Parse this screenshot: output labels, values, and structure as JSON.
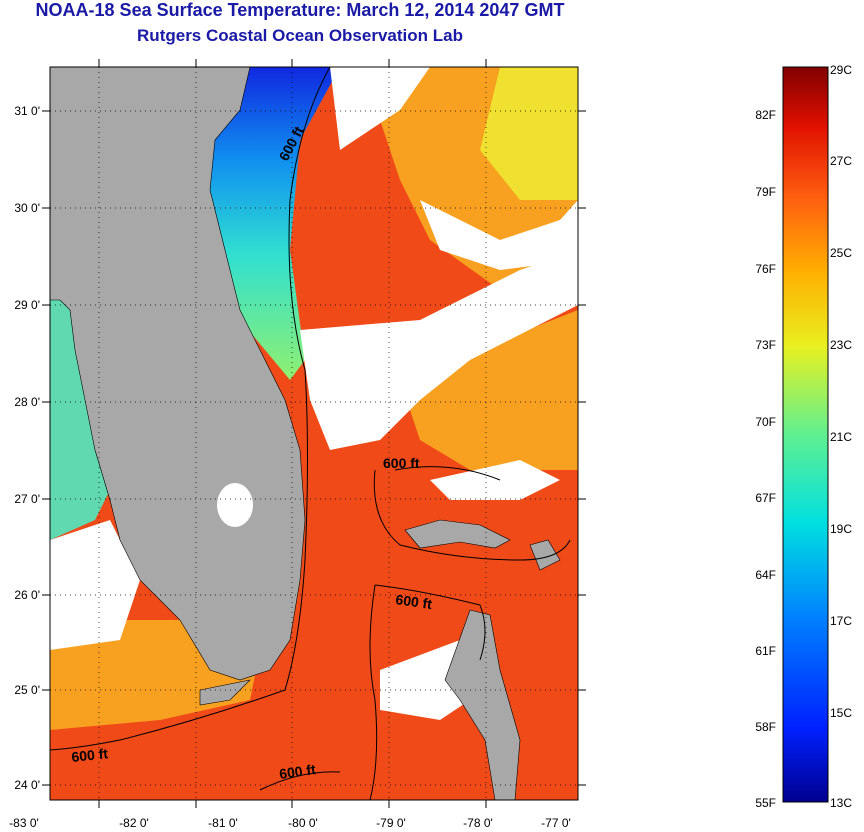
{
  "title_line1": "NOAA-18 Sea Surface Temperature:  March 12, 2014 2047 GMT",
  "title_line2": "Rutgers Coastal Ocean Observation Lab",
  "map": {
    "lon_range": [
      -83,
      -76.9
    ],
    "lat_range": [
      23.8,
      31.45
    ],
    "lat_ticks": [
      "31 0'",
      "30 0'",
      "29 0'",
      "28 0'",
      "27 0'",
      "26 0'",
      "25 0'",
      "24 0'"
    ],
    "lon_ticks": [
      "-83 0'",
      "-82 0'",
      "-81 0'",
      "-80 0'",
      "-79 0'",
      "-78 0'",
      "-77 0'"
    ],
    "contour_label": "600 ft",
    "colors": {
      "land": "#a8a8a8",
      "cloud": "#ffffff",
      "warm": "#f04a18",
      "cold": "#1030e0"
    }
  },
  "colorbar": {
    "range_c": [
      13,
      29
    ],
    "fahrenheit_labels": [
      "82F",
      "79F",
      "76F",
      "73F",
      "70F",
      "67F",
      "64F",
      "61F",
      "58F",
      "55F"
    ],
    "celsius_labels": [
      "29C",
      "27C",
      "25C",
      "23C",
      "21C",
      "19C",
      "17C",
      "15C",
      "13C"
    ]
  }
}
